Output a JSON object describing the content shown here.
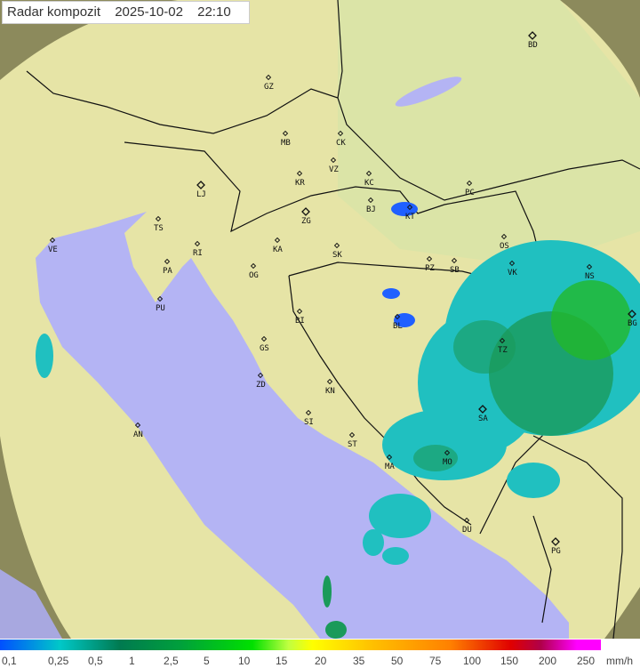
{
  "title": {
    "label": "Radar kompozit",
    "date": "2025-10-02",
    "time": "22:10"
  },
  "cities": [
    {
      "code": "GZ"
    },
    {
      "code": "BD"
    },
    {
      "code": "MB"
    },
    {
      "code": "CK"
    },
    {
      "code": "VZ"
    },
    {
      "code": "KR"
    },
    {
      "code": "KC"
    },
    {
      "code": "PC"
    },
    {
      "code": "LJ"
    },
    {
      "code": "ZG"
    },
    {
      "code": "BJ"
    },
    {
      "code": "KT"
    },
    {
      "code": "TS"
    },
    {
      "code": "VE"
    },
    {
      "code": "RI"
    },
    {
      "code": "KA"
    },
    {
      "code": "SK"
    },
    {
      "code": "OS"
    },
    {
      "code": "PA"
    },
    {
      "code": "OG"
    },
    {
      "code": "PZ"
    },
    {
      "code": "SB"
    },
    {
      "code": "VK"
    },
    {
      "code": "NS"
    },
    {
      "code": "PU"
    },
    {
      "code": "BL"
    },
    {
      "code": "BI"
    },
    {
      "code": "BG"
    },
    {
      "code": "TZ"
    },
    {
      "code": "GS"
    },
    {
      "code": "ZD"
    },
    {
      "code": "KN"
    },
    {
      "code": "SA"
    },
    {
      "code": "AN"
    },
    {
      "code": "SI"
    },
    {
      "code": "ST"
    },
    {
      "code": "MA"
    },
    {
      "code": "MO"
    },
    {
      "code": "DU"
    },
    {
      "code": "PG"
    }
  ],
  "legend": {
    "values": [
      "0,1",
      "0,25",
      "0,5",
      "1",
      "2,5",
      "5",
      "10",
      "15",
      "20",
      "35",
      "50",
      "75",
      "100",
      "150",
      "200",
      "250"
    ],
    "unit": "mm/h"
  },
  "colors": {
    "sea": "#b4b4f4",
    "land": "#e8e6a8",
    "outside": "#8c8a5c",
    "rain_light": "#20c0c0",
    "rain_mid": "#1a9a5a",
    "rain_heavy": "#00c000",
    "rain_edge": "#2060ff"
  }
}
